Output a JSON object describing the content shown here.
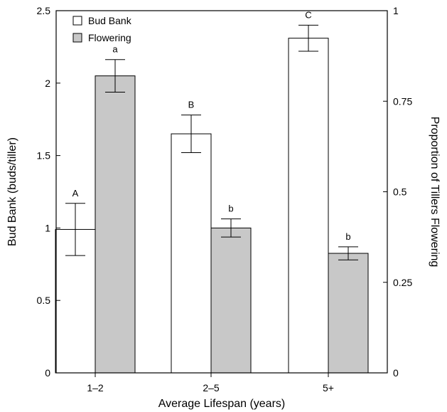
{
  "chart_data": {
    "type": "bar",
    "xlabel": "Average Lifespan (years)",
    "ylabel": "Bud Bank (buds/tiller)",
    "y2label": "Proportion of Tillers Flowering",
    "categories": [
      "1–2",
      "2–5",
      "5+"
    ],
    "ylim": [
      0,
      2.5
    ],
    "y2lim": [
      0,
      1
    ],
    "yticks": [
      "0",
      "0.5",
      "1",
      "1.5",
      "2",
      "2.5"
    ],
    "y2ticks": [
      "0",
      "0.25",
      "0.5",
      "0.75",
      "1"
    ],
    "legend_position": "top-left",
    "grid": false,
    "series": [
      {
        "name": "Bud Bank",
        "axis": "left",
        "color": "#ffffff",
        "values": [
          0.99,
          1.65,
          2.31
        ],
        "errors": [
          0.18,
          0.13,
          0.09
        ],
        "labels": [
          "A",
          "B",
          "C"
        ]
      },
      {
        "name": "Flowering",
        "axis": "right",
        "color": "#c8c8c8",
        "values": [
          0.82,
          0.4,
          0.33
        ],
        "errors": [
          0.045,
          0.025,
          0.018
        ],
        "labels": [
          "a",
          "b",
          "b"
        ]
      }
    ]
  }
}
